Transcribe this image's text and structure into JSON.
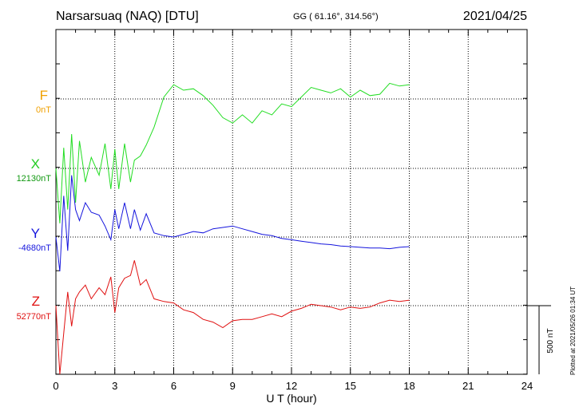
{
  "header": {
    "station": "Narsarsuaq (NAQ)  [DTU]",
    "coords": "GG ( 61.16°, 314.56°)",
    "date": "2021/04/25"
  },
  "plotted_note": "Plotted at 2021/05/26 01:34 UT",
  "chart_data": {
    "type": "line",
    "xlabel": "U T (hour)",
    "xlim": [
      0,
      24
    ],
    "xticks": [
      "0",
      "3",
      "6",
      "9",
      "12",
      "15",
      "18",
      "21",
      "24"
    ],
    "scale_bar": "500 nT",
    "series": [
      {
        "name": "F",
        "baseline": "0nT",
        "color": "#f0a000",
        "x": [],
        "y": []
      },
      {
        "name": "X",
        "baseline": "12130nT",
        "color": "#22dd22",
        "x": [
          0,
          0.2,
          0.4,
          0.6,
          0.8,
          1.0,
          1.2,
          1.5,
          1.8,
          2.2,
          2.5,
          2.8,
          3.0,
          3.2,
          3.5,
          3.8,
          4.0,
          4.3,
          4.6,
          5.0,
          5.5,
          6.0,
          6.5,
          7.0,
          7.5,
          8.0,
          8.5,
          9.0,
          9.5,
          10.0,
          10.5,
          11.0,
          11.5,
          12.0,
          12.5,
          13.0,
          13.5,
          14.0,
          14.5,
          15.0,
          15.5,
          16.0,
          16.5,
          17.0,
          17.5,
          18.0
        ],
        "y": [
          0,
          -400,
          150,
          -300,
          250,
          -250,
          200,
          -100,
          80,
          -50,
          180,
          -150,
          140,
          -150,
          180,
          -100,
          60,
          90,
          170,
          300,
          520,
          610,
          570,
          580,
          530,
          460,
          370,
          330,
          390,
          330,
          420,
          390,
          470,
          450,
          520,
          590,
          570,
          550,
          580,
          520,
          570,
          530,
          540,
          620,
          600,
          610
        ]
      },
      {
        "name": "Y",
        "baseline": "-4680nT",
        "color": "#1515dd",
        "x": [
          0,
          0.2,
          0.4,
          0.6,
          0.8,
          1.0,
          1.2,
          1.5,
          1.8,
          2.2,
          2.5,
          2.8,
          3.0,
          3.2,
          3.5,
          3.8,
          4.0,
          4.3,
          4.6,
          5.0,
          5.5,
          6.0,
          6.5,
          7.0,
          7.5,
          8.0,
          8.5,
          9.0,
          9.5,
          10.0,
          10.5,
          11.0,
          11.5,
          12.0,
          12.5,
          13.0,
          13.5,
          14.0,
          14.5,
          15.0,
          15.5,
          16.0,
          16.5,
          17.0,
          17.5,
          18.0
        ],
        "y": [
          0,
          -250,
          300,
          -100,
          450,
          200,
          120,
          250,
          180,
          160,
          80,
          -20,
          200,
          60,
          250,
          60,
          200,
          50,
          170,
          30,
          10,
          0,
          20,
          40,
          30,
          60,
          70,
          80,
          60,
          40,
          20,
          10,
          -10,
          -20,
          -30,
          -40,
          -50,
          -55,
          -65,
          -70,
          -75,
          -80,
          -80,
          -85,
          -75,
          -70
        ]
      },
      {
        "name": "Z",
        "baseline": "52770nT",
        "color": "#e01010",
        "x": [
          0,
          0.2,
          0.4,
          0.6,
          0.8,
          1.0,
          1.2,
          1.5,
          1.8,
          2.2,
          2.5,
          2.8,
          3.0,
          3.2,
          3.5,
          3.8,
          4.0,
          4.3,
          4.6,
          5.0,
          5.5,
          6.0,
          6.5,
          7.0,
          7.5,
          8.0,
          8.5,
          9.0,
          9.5,
          10.0,
          10.5,
          11.0,
          11.5,
          12.0,
          12.5,
          13.0,
          13.5,
          14.0,
          14.5,
          15.0,
          15.5,
          16.0,
          16.5,
          17.0,
          17.5,
          18.0
        ],
        "y": [
          0,
          -500,
          -200,
          100,
          -150,
          50,
          100,
          150,
          50,
          130,
          80,
          210,
          -50,
          130,
          200,
          220,
          330,
          150,
          190,
          50,
          30,
          20,
          -30,
          -50,
          -100,
          -120,
          -160,
          -110,
          -100,
          -100,
          -80,
          -60,
          -80,
          -40,
          -20,
          10,
          0,
          -10,
          -30,
          -10,
          -20,
          -10,
          20,
          40,
          30,
          40
        ]
      }
    ]
  }
}
